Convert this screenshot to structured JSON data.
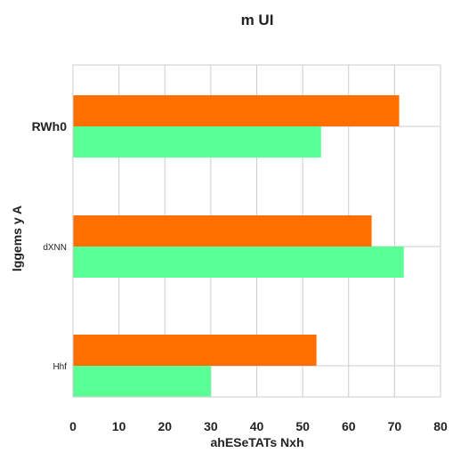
{
  "chart_data": {
    "type": "bar",
    "orientation": "horizontal",
    "title": "m  UI",
    "xlabel": "ahESeTATs Nxh",
    "ylabel": "lggems y A",
    "xlim": [
      0,
      80
    ],
    "xticks": [
      "0",
      "10",
      "20",
      "30",
      "40",
      "50",
      "60",
      "70",
      "80"
    ],
    "categories": [
      "RWh0",
      "dXNN",
      "Hhf"
    ],
    "category_label_styles": [
      "large-bold",
      "small",
      "small"
    ],
    "series": [
      {
        "color": "#ff6e00",
        "values": [
          71,
          65,
          53
        ]
      },
      {
        "color": "#5aff96",
        "values": [
          54,
          72,
          30
        ]
      }
    ],
    "grid": true,
    "legend": "none"
  }
}
